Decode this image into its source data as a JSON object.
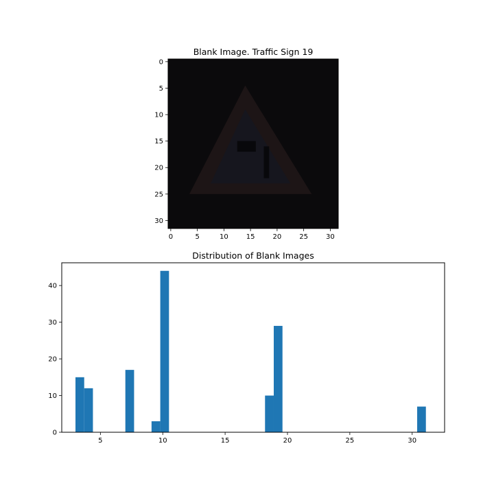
{
  "chart_data": [
    {
      "type": "heatmap",
      "title": "Blank Image. Traffic Sign 19",
      "description_kind": "image",
      "xlim": [
        -0.5,
        31.5
      ],
      "ylim": [
        31.5,
        -0.5
      ],
      "xticks": [
        0,
        5,
        10,
        15,
        20,
        25,
        30
      ],
      "yticks": [
        0,
        5,
        10,
        15,
        20,
        25,
        30
      ],
      "colors": {
        "background": "#0b0a0c",
        "triangle_border": "#1d1516",
        "triangle_fill": "#16161e",
        "symbol": "#08080b"
      }
    },
    {
      "type": "bar",
      "title": "Distribution of Blank Images",
      "xlabel": "",
      "ylabel": "",
      "xlim": [
        1.9,
        32.6
      ],
      "ylim": [
        0,
        46.2
      ],
      "xticks": [
        5,
        10,
        15,
        20,
        25,
        30
      ],
      "yticks": [
        0,
        10,
        20,
        30,
        40
      ],
      "bin_width": 0.7,
      "bars": [
        {
          "x": 3.0,
          "value": 15
        },
        {
          "x": 3.7,
          "value": 12
        },
        {
          "x": 7.0,
          "value": 17
        },
        {
          "x": 9.1,
          "value": 3
        },
        {
          "x": 9.8,
          "value": 44
        },
        {
          "x": 18.2,
          "value": 10
        },
        {
          "x": 18.9,
          "value": 29
        },
        {
          "x": 30.4,
          "value": 7
        }
      ],
      "color": "#1f77b4"
    }
  ]
}
